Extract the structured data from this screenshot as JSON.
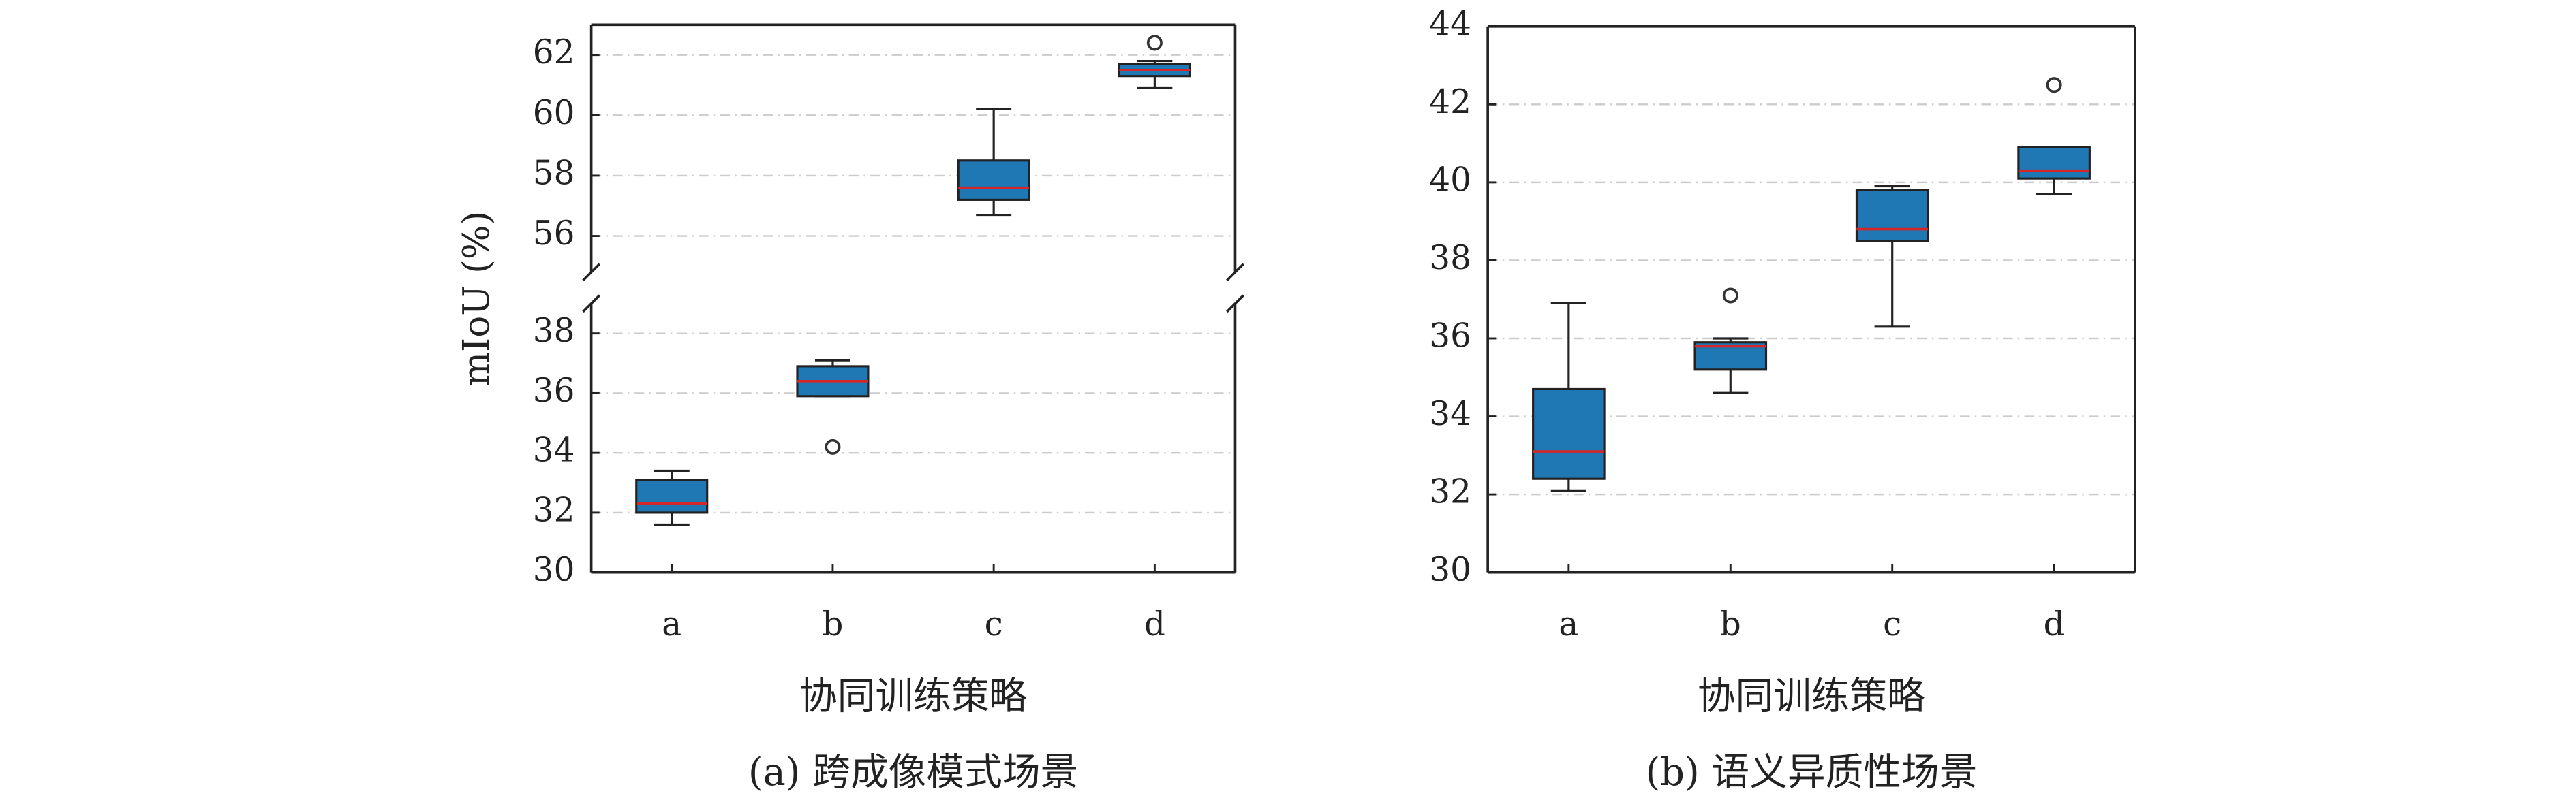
{
  "chart_data": [
    {
      "type": "box",
      "caption": "(a) 跨成像模式场景",
      "xlabel": "协同训练策略",
      "ylabel": "mIoU (%)",
      "categories": [
        "a",
        "b",
        "c",
        "d"
      ],
      "color": "#1f77b4",
      "median_color": "#d62728",
      "grid": true,
      "y_break": true,
      "axes": [
        {
          "ylim": [
            54.8,
            63
          ],
          "yticks": [
            56,
            58,
            60,
            62
          ]
        },
        {
          "ylim": [
            30,
            39
          ],
          "yticks": [
            30,
            32,
            34,
            36,
            38
          ]
        }
      ],
      "boxes": [
        {
          "min": 31.6,
          "q1": 32.0,
          "median": 32.3,
          "q3": 33.1,
          "max": 33.4,
          "outliers": []
        },
        {
          "min": 35.9,
          "q1": 35.9,
          "median": 36.4,
          "q3": 36.9,
          "max": 37.1,
          "outliers": [
            34.2
          ]
        },
        {
          "min": 56.7,
          "q1": 57.2,
          "median": 57.6,
          "q3": 58.5,
          "max": 60.2,
          "outliers": []
        },
        {
          "min": 60.9,
          "q1": 61.3,
          "median": 61.5,
          "q3": 61.7,
          "max": 61.8,
          "outliers": [
            62.4
          ]
        }
      ]
    },
    {
      "type": "box",
      "caption": "(b) 语义异质性场景",
      "xlabel": "协同训练策略",
      "categories": [
        "a",
        "b",
        "c",
        "d"
      ],
      "color": "#1f77b4",
      "median_color": "#d62728",
      "grid": true,
      "y_break": false,
      "axes": [
        {
          "ylim": [
            30,
            44
          ],
          "yticks": [
            30,
            32,
            34,
            36,
            38,
            40,
            42,
            44
          ]
        }
      ],
      "boxes": [
        {
          "min": 32.1,
          "q1": 32.4,
          "median": 33.1,
          "q3": 34.7,
          "max": 36.9,
          "outliers": []
        },
        {
          "min": 34.6,
          "q1": 35.2,
          "median": 35.8,
          "q3": 35.9,
          "max": 36.0,
          "outliers": [
            37.1
          ]
        },
        {
          "min": 36.3,
          "q1": 38.5,
          "median": 38.8,
          "q3": 39.8,
          "max": 39.9,
          "outliers": []
        },
        {
          "min": 39.7,
          "q1": 40.1,
          "median": 40.3,
          "q3": 40.9,
          "max": 40.9,
          "outliers": [
            42.5
          ]
        }
      ]
    }
  ]
}
